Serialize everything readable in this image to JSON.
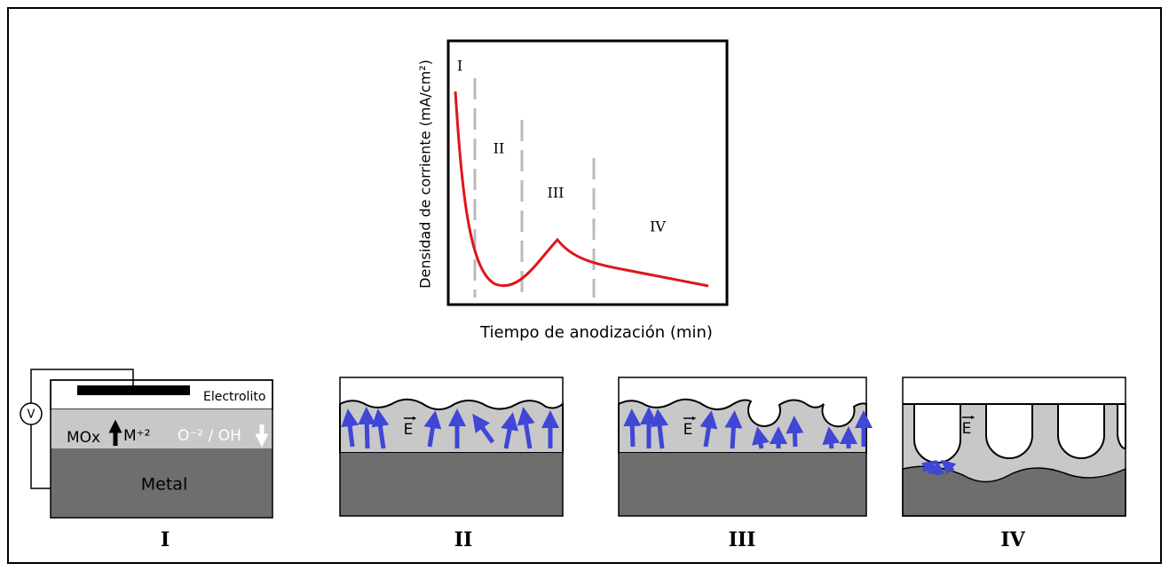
{
  "graph": {
    "y_label": "Densidad de corriente (mA/cm²)",
    "x_label": "Tiempo de anodización (min)",
    "stages": [
      "I",
      "II",
      "III",
      "IV"
    ]
  },
  "panel_one": {
    "electrolyte": "Electrolito",
    "oxide": "MOx",
    "cation": "M⁺²",
    "anion": "O⁻² / OH",
    "metal": "Metal",
    "voltmeter": "V"
  },
  "field": "E",
  "panels": [
    "I",
    "II",
    "III",
    "IV"
  ]
}
